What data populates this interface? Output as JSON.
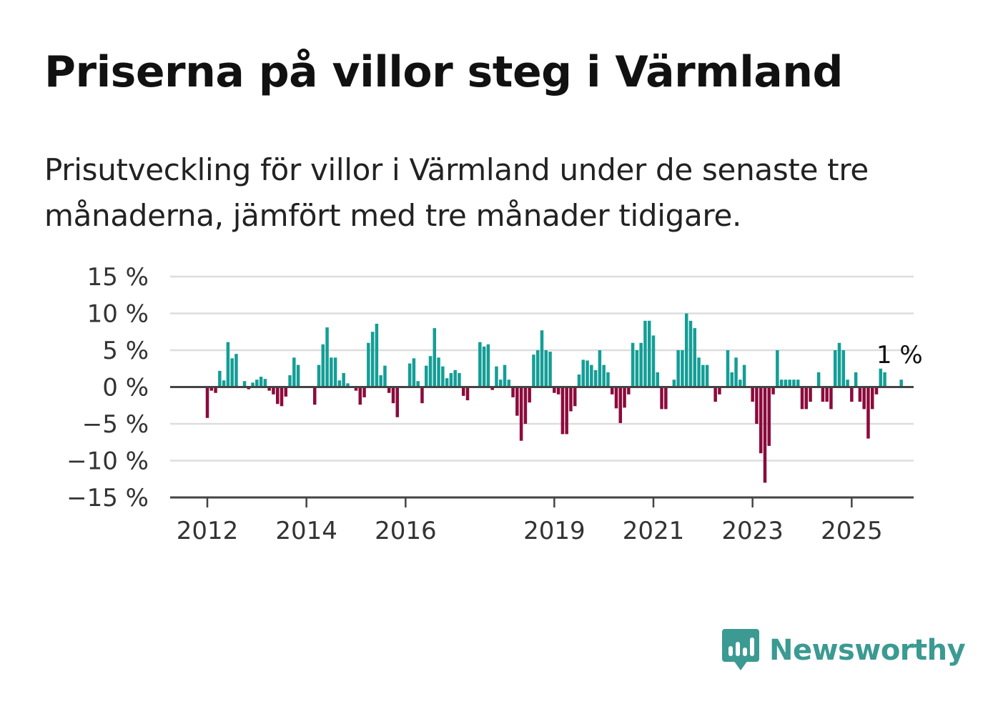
{
  "title": "Priserna på villor steg i Värmland",
  "subtitle": "Prisutveckling för villor i Värmland under de senaste tre månaderna, jämfört med tre månader tidigare.",
  "brand": {
    "name": "Newsworthy",
    "icon": "newsworthy-logo-icon",
    "color": "#3b9a92"
  },
  "colors": {
    "positive": "#139e96",
    "negative": "#8c0a3c",
    "grid": "#dddddd",
    "axis": "#444444"
  },
  "chart_data": {
    "type": "bar",
    "title": "Priserna på villor steg i Värmland",
    "subtitle": "Prisutveckling för villor i Värmland under de senaste tre månaderna, jämfört med tre månader tidigare.",
    "xlabel": "",
    "ylabel": "",
    "ylim": [
      -15,
      15
    ],
    "y_ticks": [
      15,
      10,
      5,
      0,
      -5,
      -10,
      -15
    ],
    "y_tick_labels": [
      "15 %",
      "10 %",
      "5 %",
      "0 %",
      "−5 %",
      "−10 %",
      "−15 %"
    ],
    "x_range": [
      "2011-04",
      "2026-04"
    ],
    "x_tick_labels": [
      "2012",
      "2014",
      "2016",
      "2019",
      "2021",
      "2023",
      "2025"
    ],
    "x_tick_dates": [
      "2012-01",
      "2014-01",
      "2016-01",
      "2019-01",
      "2021-01",
      "2023-01",
      "2025-01"
    ],
    "grid": true,
    "start_month": "2012-01",
    "frequency": "monthly",
    "values": [
      -4.2,
      -0.5,
      -0.8,
      2.2,
      0.9,
      6.1,
      3.9,
      4.5,
      0,
      0.8,
      -0.3,
      0.6,
      1.0,
      1.4,
      1.1,
      -0.5,
      -1.0,
      -2.3,
      -2.6,
      -1.3,
      1.6,
      4.0,
      3.0,
      0,
      0,
      0,
      -2.4,
      3.0,
      5.8,
      8.1,
      4.0,
      4.0,
      0.9,
      1.9,
      0.5,
      0,
      -0.5,
      -2.4,
      -1.4,
      6.0,
      7.5,
      8.6,
      1.6,
      2.9,
      -0.8,
      -2.2,
      -4.1,
      0,
      0,
      3.2,
      3.9,
      0.8,
      -2.2,
      2.9,
      4.2,
      8.0,
      4.0,
      2.8,
      1.2,
      1.9,
      2.3,
      1.9,
      -1.2,
      -1.8,
      0,
      0,
      6.1,
      5.5,
      5.8,
      -0.4,
      2.8,
      1.0,
      3.0,
      1.0,
      -1.4,
      -3.9,
      -7.3,
      -5.0,
      -2.1,
      4.4,
      5.0,
      7.7,
      5.0,
      4.8,
      -0.8,
      -1.0,
      -6.4,
      -6.4,
      -3.3,
      -2.6,
      1.7,
      3.7,
      3.6,
      3.0,
      2.3,
      5.0,
      3.0,
      2.0,
      -1.0,
      -2.9,
      -4.9,
      -2.8,
      -1.0,
      6.0,
      5.0,
      6.0,
      9.0,
      9.0,
      7.0,
      2.0,
      -3.0,
      -3.0,
      0,
      1.0,
      5.0,
      5.0,
      10.0,
      9.0,
      8.0,
      4.0,
      3.0,
      3.0,
      0,
      -2.0,
      -1.0,
      0,
      5.0,
      2.0,
      4.0,
      1.0,
      3.0,
      0,
      -2.0,
      -5.0,
      -9.0,
      -13.0,
      -8.0,
      -1.0,
      5.0,
      1.0,
      1.0,
      1.0,
      1.0,
      1.0,
      -3.0,
      -3.0,
      -2.0,
      0,
      2.0,
      -2.0,
      -2.0,
      -3.0,
      5.0,
      6.0,
      5.0,
      1.0,
      -2.0,
      2.0,
      -2.0,
      -3.0,
      -7.0,
      -3.0,
      -1.0,
      2.5,
      2.0,
      0,
      0,
      0,
      1.0
    ],
    "last_value_label": "1 %",
    "last_value": 1.0
  }
}
